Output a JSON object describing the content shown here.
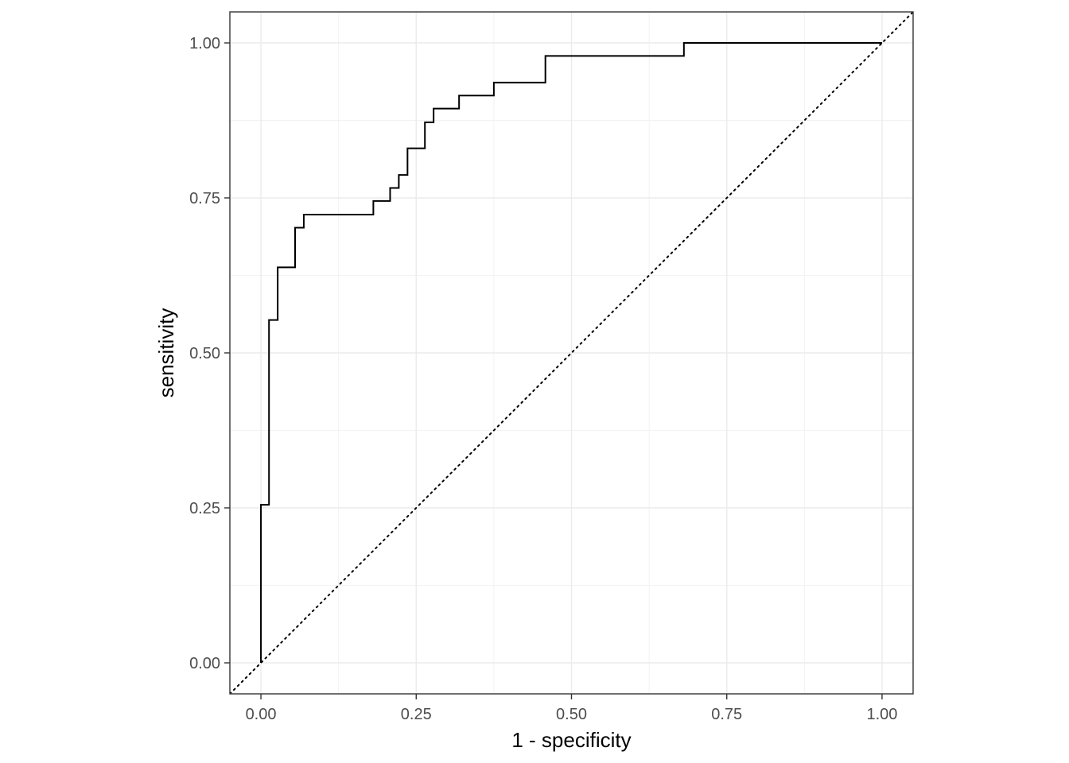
{
  "chart_data": {
    "type": "line",
    "title": "",
    "xlabel": "1 - specificity",
    "ylabel": "sensitivity",
    "xlim": [
      -0.05,
      1.05
    ],
    "ylim": [
      -0.05,
      1.05
    ],
    "x_ticks": [
      0,
      0.25,
      0.5,
      0.75,
      1
    ],
    "x_tick_labels": [
      "0.00",
      "0.25",
      "0.50",
      "0.75",
      "1.00"
    ],
    "y_ticks": [
      0,
      0.25,
      0.5,
      0.75,
      1
    ],
    "y_tick_labels": [
      "0.00",
      "0.25",
      "0.50",
      "0.75",
      "1.00"
    ],
    "grid": true,
    "legend": "none",
    "aspect": "equal",
    "theme": "bw",
    "series": [
      {
        "style": "step",
        "color": "#000000",
        "x": [
          0,
          0,
          0.013,
          0.013,
          0.027,
          0.027,
          0.055,
          0.055,
          0.069,
          0.069,
          0.181,
          0.181,
          0.208,
          0.208,
          0.222,
          0.222,
          0.236,
          0.236,
          0.264,
          0.264,
          0.278,
          0.278,
          0.319,
          0.319,
          0.375,
          0.375,
          0.458,
          0.458,
          0.681,
          0.681,
          1.0
        ],
        "y": [
          0,
          0.255,
          0.255,
          0.553,
          0.553,
          0.638,
          0.638,
          0.702,
          0.702,
          0.723,
          0.723,
          0.745,
          0.745,
          0.766,
          0.766,
          0.787,
          0.787,
          0.83,
          0.83,
          0.872,
          0.872,
          0.894,
          0.894,
          0.915,
          0.915,
          0.936,
          0.936,
          0.979,
          0.979,
          1.0,
          1.0
        ]
      },
      {
        "style": "dotted",
        "color": "#000000",
        "x": [
          -0.05,
          1.05
        ],
        "y": [
          -0.05,
          1.05
        ]
      }
    ]
  }
}
